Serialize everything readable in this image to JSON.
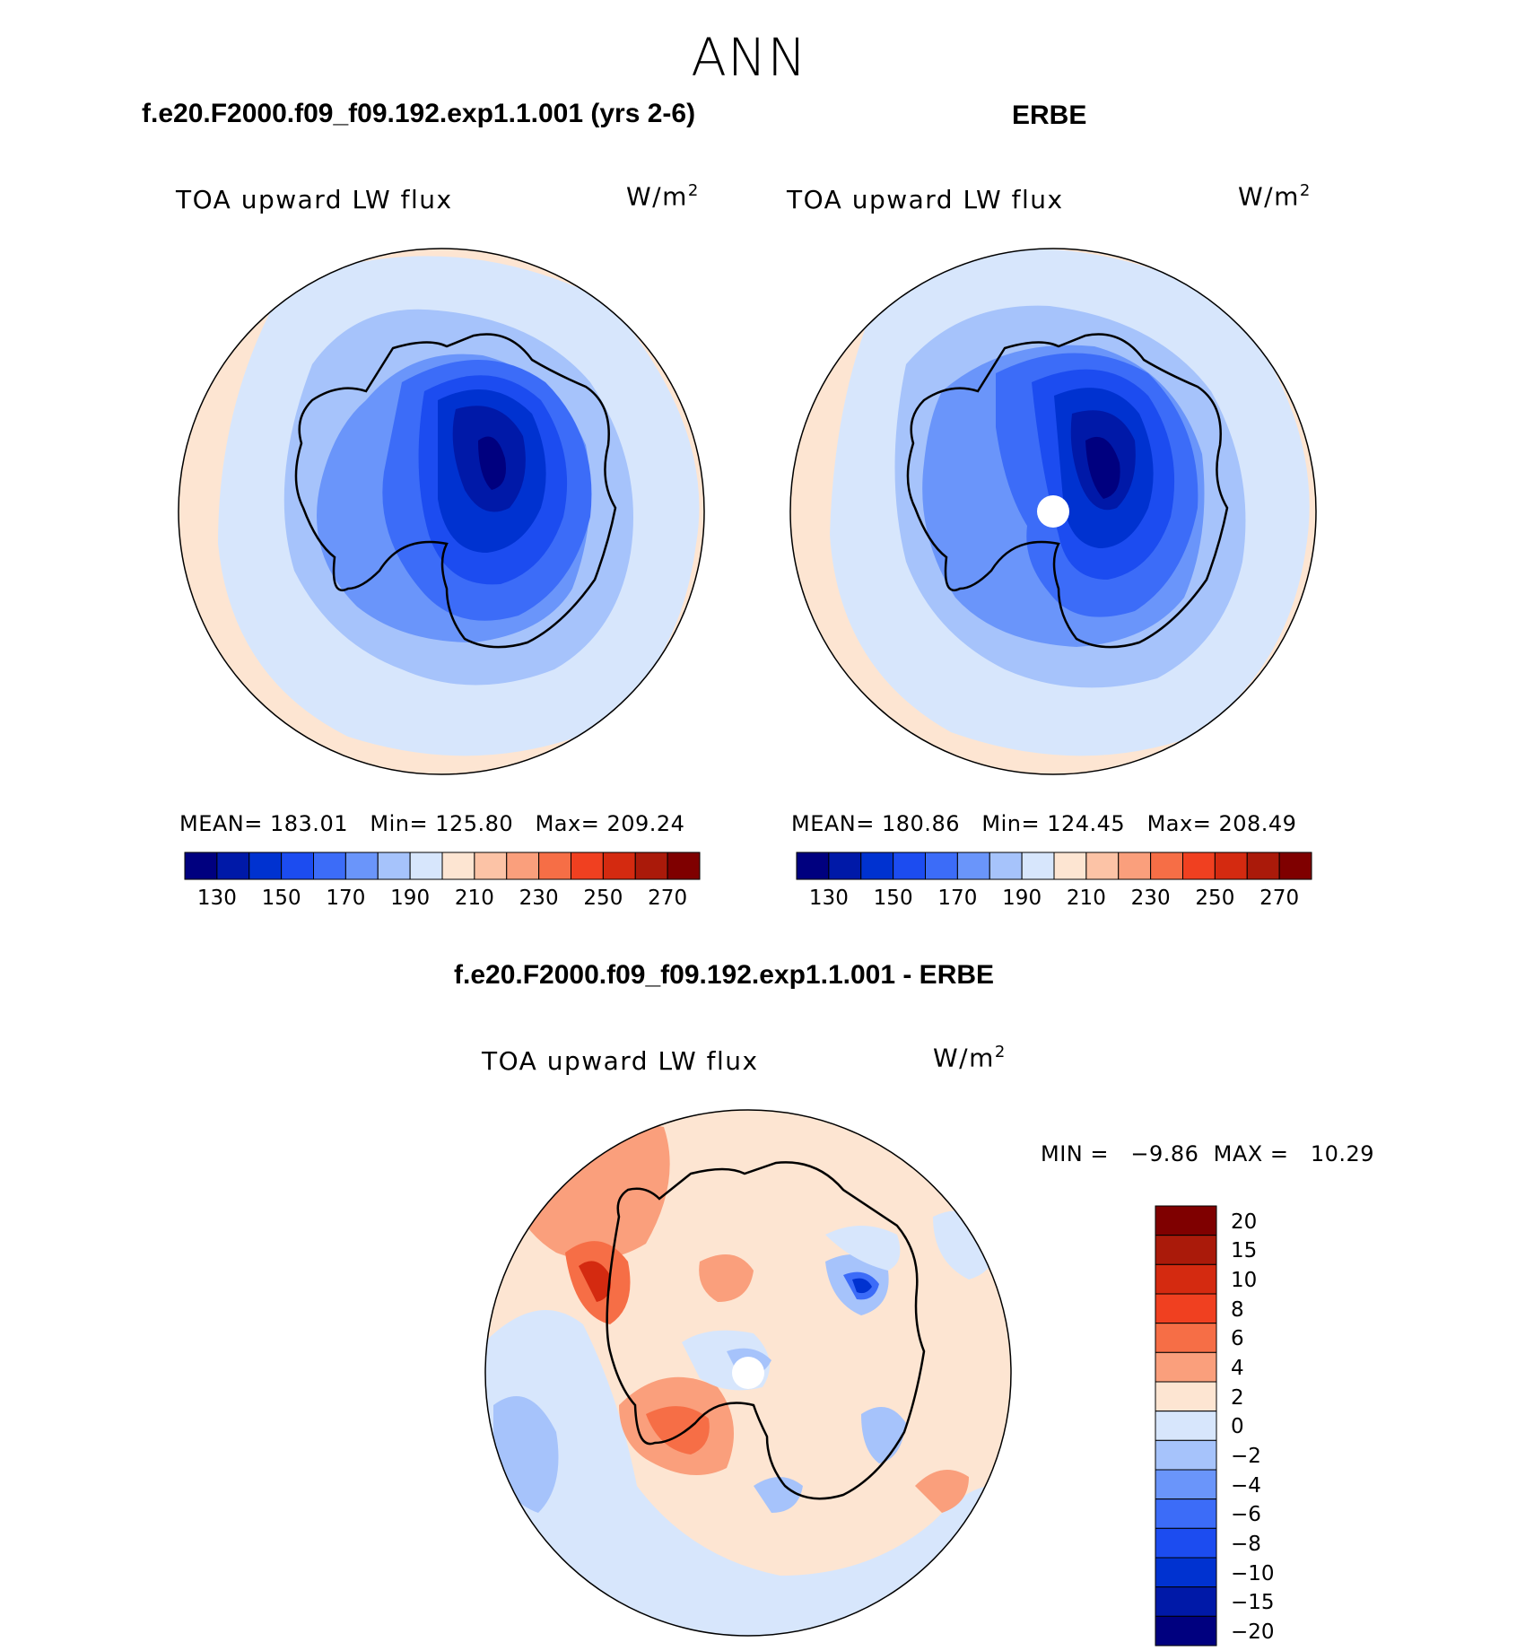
{
  "figure": {
    "title": "ANN",
    "panel_left": {
      "case_title": "f.e20.F2000.f09_f09.192.exp1.1.001 (yrs 2-6)",
      "variable": "TOA upward LW flux",
      "units": "W/m",
      "units_sup": "2",
      "mean_label": "MEAN=",
      "mean": "183.01",
      "min_label": "Min=",
      "min": "125.80",
      "max_label": "Max=",
      "max": "209.24"
    },
    "panel_right": {
      "case_title": "ERBE",
      "variable": "TOA upward LW flux",
      "units": "W/m",
      "units_sup": "2",
      "mean_label": "MEAN=",
      "mean": "180.86",
      "min_label": "Min=",
      "min": "124.45",
      "max_label": "Max=",
      "max": "208.49"
    },
    "panel_diff": {
      "case_title": "f.e20.F2000.f09_f09.192.exp1.1.001 - ERBE",
      "variable": "TOA upward LW flux",
      "units": "W/m",
      "units_sup": "2",
      "minmax_text": "MIN =   −9.86  MAX =   10.29"
    }
  },
  "colorbar_main": {
    "colors": [
      "#00007f",
      "#0019a8",
      "#0032d0",
      "#1c4cf0",
      "#3c6cf8",
      "#6a95fa",
      "#a6c3fb",
      "#d7e6fc",
      "#fde5d2",
      "#fcc3a6",
      "#fa9f7c",
      "#f66e46",
      "#f04020",
      "#d42a10",
      "#aa1a0a",
      "#7f0000"
    ],
    "tick_labels": [
      "130",
      "150",
      "170",
      "190",
      "210",
      "230",
      "250",
      "270"
    ]
  },
  "colorbar_diff": {
    "colors": [
      "#7f0000",
      "#aa1a0a",
      "#d42a10",
      "#f04020",
      "#f66e46",
      "#fa9f7c",
      "#fde5d2",
      "#d7e6fc",
      "#a6c3fb",
      "#6a95fa",
      "#3c6cf8",
      "#1c4cf0",
      "#0032d0",
      "#0019a8",
      "#00007f"
    ],
    "tick_labels": [
      "20",
      "15",
      "10",
      "8",
      "6",
      "4",
      "2",
      "0",
      "−2",
      "−4",
      "−6",
      "−8",
      "−10",
      "−15",
      "−20"
    ]
  }
}
